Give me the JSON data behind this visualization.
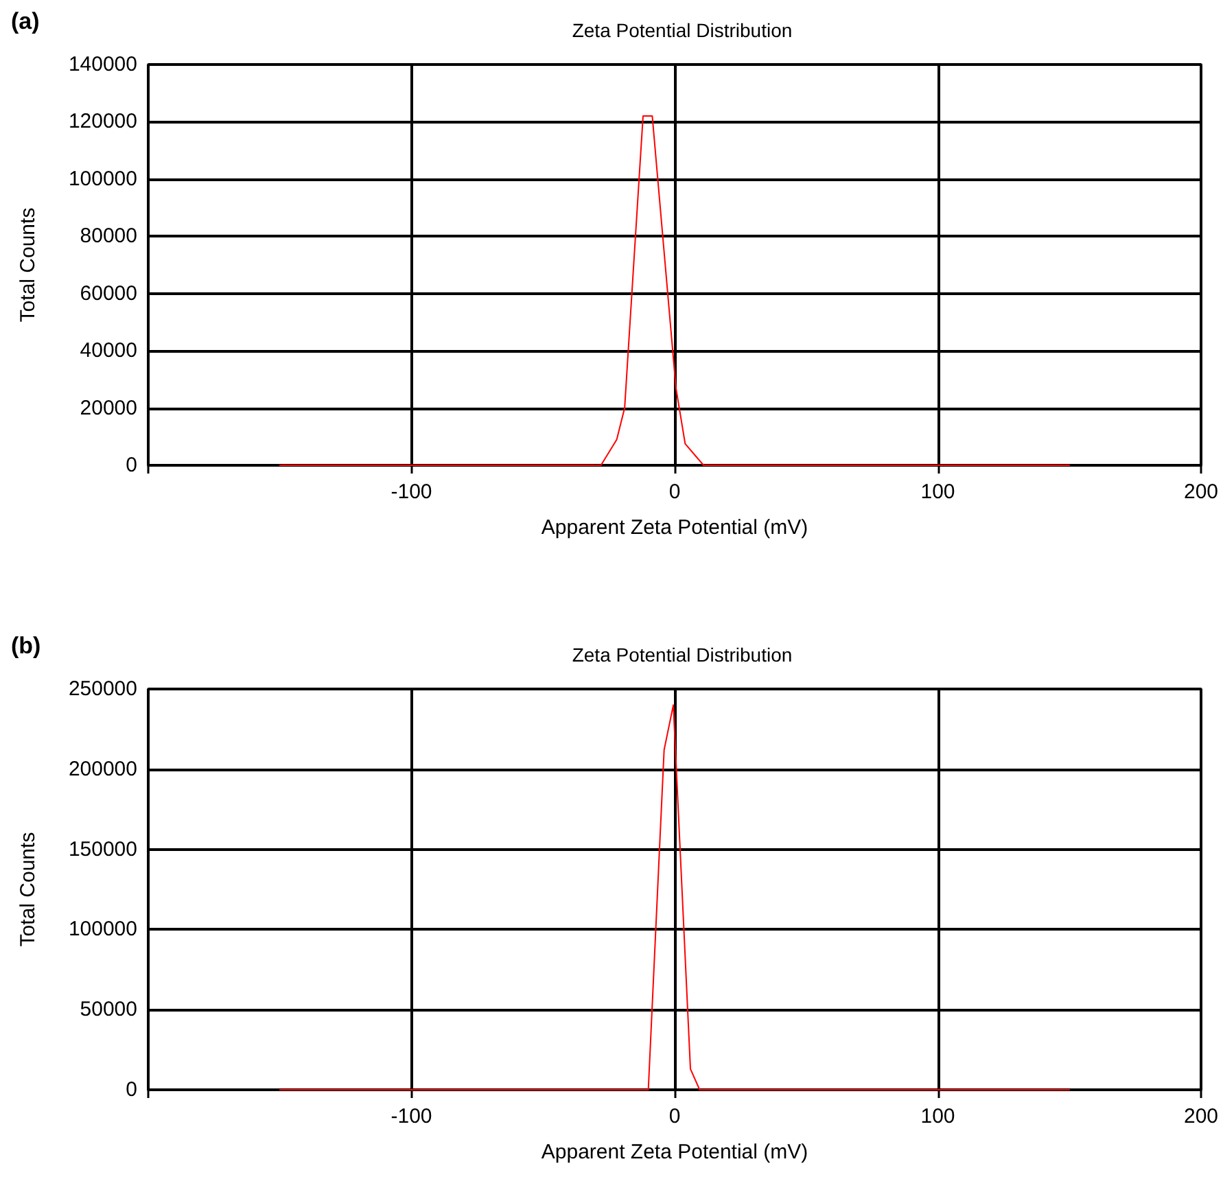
{
  "chart_data": [
    {
      "type": "line",
      "title": "Zeta Potential Distribution",
      "xlabel": "Apparent Zeta Potential (mV)",
      "ylabel": "Total Counts",
      "annotations": [
        "(a)"
      ],
      "x": [
        -150,
        -28,
        -22,
        -19,
        -12,
        -8.5,
        0.5,
        4,
        11,
        150
      ],
      "series": [
        {
          "color": "#ff0000",
          "values": [
            0,
            0,
            9000,
            20000,
            122000,
            122000,
            27000,
            7500,
            0,
            0
          ]
        }
      ],
      "xlim": [
        -200,
        200
      ],
      "xticks": [
        {
          "value": -200,
          "label": null
        },
        -100,
        0,
        100,
        200
      ],
      "ylim": [
        0,
        140000
      ],
      "yticks": [
        0,
        20000,
        40000,
        60000,
        80000,
        100000,
        120000,
        140000
      ],
      "grid": true,
      "marker": "none",
      "line_style": "solid"
    },
    {
      "type": "line",
      "title": "Zeta Potential Distribution",
      "xlabel": "Apparent Zeta Potential (mV)",
      "ylabel": "Total Counts",
      "annotations": [
        "(b)"
      ],
      "x": [
        -150,
        -10,
        -4,
        -0.5,
        6,
        9.5,
        150
      ],
      "series": [
        {
          "color": "#ff0000",
          "values": [
            0,
            0,
            212000,
            240000,
            13000,
            0,
            0
          ]
        }
      ],
      "xlim": [
        -200,
        200
      ],
      "xticks": [
        {
          "value": -200,
          "label": null
        },
        -100,
        0,
        100,
        200
      ],
      "ylim": [
        0,
        250000
      ],
      "yticks": [
        0,
        50000,
        100000,
        150000,
        200000,
        250000
      ],
      "grid": true,
      "marker": "none",
      "line_style": "solid"
    }
  ]
}
